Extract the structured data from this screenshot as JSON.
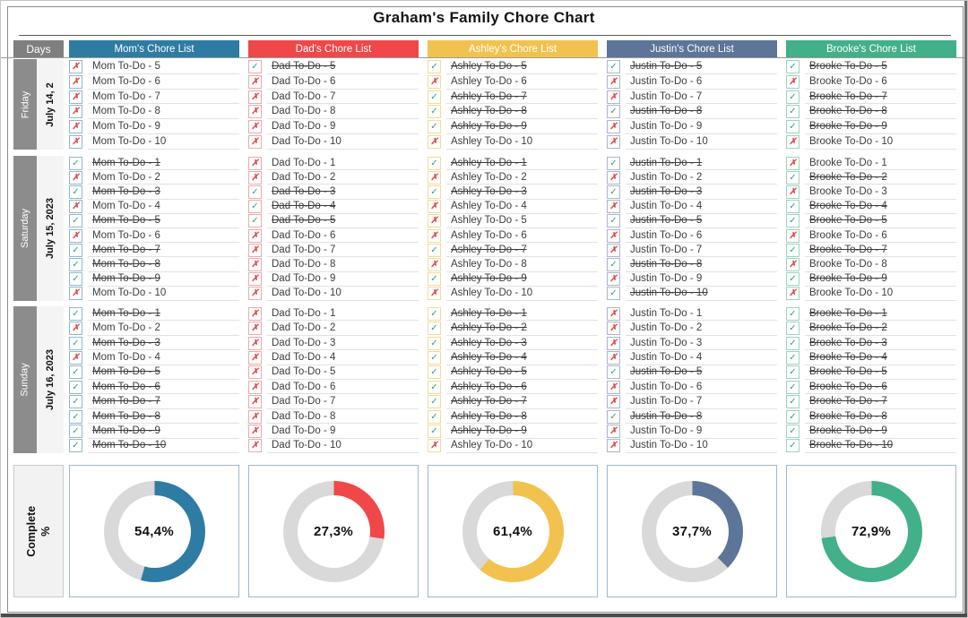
{
  "title": "Graham's Family Chore Chart",
  "header": {
    "days_label": "Days"
  },
  "people": [
    {
      "key": "mom",
      "header": "Mom's Chore List",
      "chore_prefix": "Mom To-Do - ",
      "color": "#2E7CA4",
      "checkbox_border": "#8FB9CA",
      "pct": 54.4,
      "pct_label": "54,4%"
    },
    {
      "key": "dad",
      "header": "Dad's Chore List",
      "chore_prefix": "Dad To-Do - ",
      "color": "#F04749",
      "checkbox_border": "#EFA9A9",
      "pct": 27.3,
      "pct_label": "27,3%"
    },
    {
      "key": "ashley",
      "header": "Ashley's Chore List",
      "chore_prefix": "Ashley To-Do - ",
      "color": "#F2C24E",
      "checkbox_border": "#F6DA96",
      "pct": 61.4,
      "pct_label": "61,4%"
    },
    {
      "key": "justin",
      "header": "Justin's Chore List",
      "chore_prefix": "Justin To-Do - ",
      "color": "#5C7598",
      "checkbox_border": "#AAB6C8",
      "pct": 37.7,
      "pct_label": "37,7%"
    },
    {
      "key": "brooke",
      "header": "Brooke's Chore List",
      "chore_prefix": "Brooke To-Do - ",
      "color": "#42B088",
      "checkbox_border": "#9BD4BE",
      "pct": 72.9,
      "pct_label": "72,9%"
    }
  ],
  "sections": [
    {
      "day": "Friday",
      "date": "July 14, 2",
      "items": [
        5,
        6,
        7,
        8,
        9,
        10
      ],
      "done": {
        "mom": [
          0,
          0,
          0,
          0,
          0,
          0
        ],
        "dad": [
          1,
          0,
          0,
          0,
          0,
          0
        ],
        "ashley": [
          1,
          0,
          1,
          1,
          1,
          0
        ],
        "justin": [
          1,
          0,
          0,
          1,
          0,
          0
        ],
        "brooke": [
          1,
          0,
          1,
          1,
          1,
          0
        ]
      }
    },
    {
      "day": "Saturday",
      "date": "July 15, 2023",
      "items": [
        1,
        2,
        3,
        4,
        5,
        6,
        7,
        8,
        9,
        10
      ],
      "done": {
        "mom": [
          1,
          0,
          1,
          0,
          1,
          0,
          1,
          1,
          1,
          0
        ],
        "dad": [
          0,
          0,
          1,
          1,
          1,
          0,
          0,
          0,
          0,
          0
        ],
        "ashley": [
          1,
          0,
          1,
          0,
          0,
          0,
          1,
          0,
          1,
          0
        ],
        "justin": [
          1,
          0,
          1,
          0,
          1,
          0,
          0,
          1,
          0,
          1
        ],
        "brooke": [
          0,
          1,
          0,
          1,
          1,
          0,
          1,
          0,
          1,
          0
        ]
      }
    },
    {
      "day": "Sunday",
      "date": "July 16, 2023",
      "items": [
        1,
        2,
        3,
        4,
        5,
        6,
        7,
        8,
        9,
        10
      ],
      "done": {
        "mom": [
          1,
          0,
          1,
          0,
          1,
          1,
          1,
          1,
          1,
          1
        ],
        "dad": [
          0,
          0,
          0,
          0,
          0,
          0,
          0,
          0,
          0,
          0
        ],
        "ashley": [
          1,
          1,
          1,
          1,
          1,
          1,
          1,
          1,
          1,
          0
        ],
        "justin": [
          0,
          0,
          0,
          0,
          1,
          0,
          0,
          1,
          0,
          0
        ],
        "brooke": [
          1,
          1,
          1,
          1,
          1,
          1,
          1,
          1,
          1,
          1
        ]
      }
    }
  ],
  "complete": {
    "label_line1": "Complete",
    "label_line2": "%"
  },
  "icons": {
    "check": "✓",
    "cross": "✗"
  },
  "colors": {
    "check": "#29A38A",
    "cross": "#DF4747",
    "track": "#D9D9D9",
    "day_band": "#8C8C8C",
    "days_header": "#7F7F7F",
    "donut_box_border": "#9FB9C8"
  },
  "chart_data": {
    "type": "pie",
    "title": "Complete %",
    "series": [
      {
        "name": "Mom",
        "value": 54.4
      },
      {
        "name": "Dad",
        "value": 27.3
      },
      {
        "name": "Ashley",
        "value": 61.4
      },
      {
        "name": "Justin",
        "value": 37.7
      },
      {
        "name": "Brooke",
        "value": 72.9
      }
    ]
  }
}
